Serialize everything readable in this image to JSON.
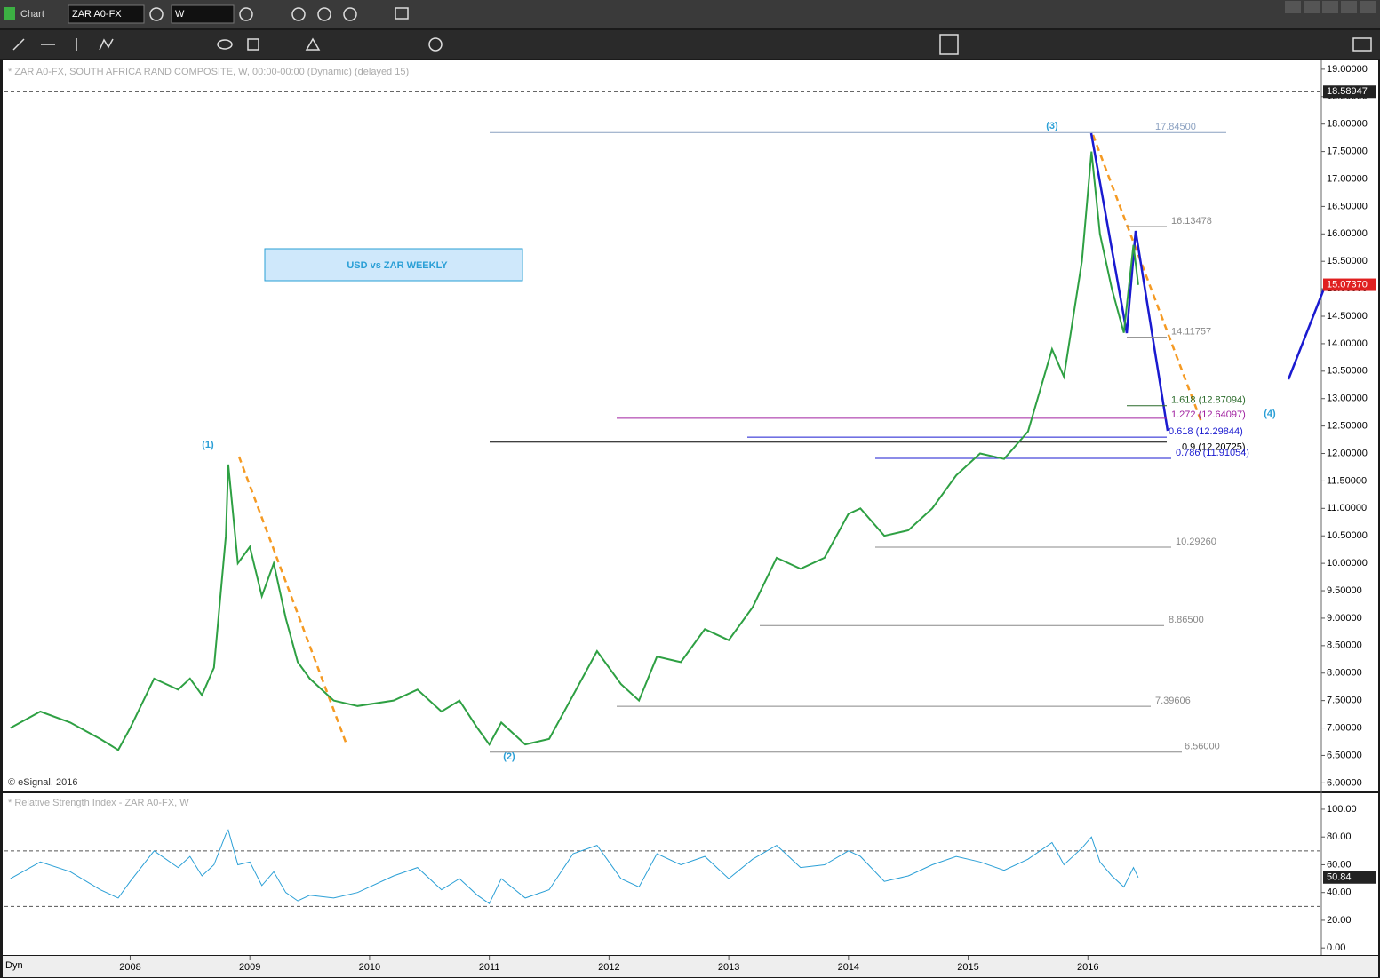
{
  "app_label": "Chart",
  "symbol": "ZAR A0-FX",
  "interval": "W",
  "footer_label": "Dyn",
  "chart_data": [
    {
      "type": "line",
      "title": "* ZAR A0-FX, SOUTH AFRICA RAND COMPOSITE, W, 00:00-00:00 (Dynamic) (delayed 15)",
      "annotation": "USD vs ZAR WEEKLY",
      "credit": "© eSignal, 2016",
      "wave_labels": [
        "(1)",
        "(2)",
        "(3)",
        "(4)"
      ],
      "x": [
        2007.0,
        2007.25,
        2007.5,
        2007.75,
        2007.9,
        2008.0,
        2008.2,
        2008.4,
        2008.5,
        2008.6,
        2008.7,
        2008.8,
        2008.82,
        2008.9,
        2009.0,
        2009.1,
        2009.2,
        2009.3,
        2009.4,
        2009.5,
        2009.7,
        2009.9,
        2010.2,
        2010.4,
        2010.6,
        2010.75,
        2010.9,
        2011.0,
        2011.1,
        2011.3,
        2011.5,
        2011.7,
        2011.9,
        2012.1,
        2012.25,
        2012.4,
        2012.6,
        2012.8,
        2013.0,
        2013.2,
        2013.4,
        2013.6,
        2013.8,
        2014.0,
        2014.1,
        2014.3,
        2014.5,
        2014.7,
        2014.9,
        2015.1,
        2015.3,
        2015.5,
        2015.7,
        2015.8,
        2015.95,
        2016.03,
        2016.1,
        2016.2,
        2016.3,
        2016.38,
        2016.42
      ],
      "series": [
        {
          "name": "ZAR A0-FX",
          "color": "#2ea043",
          "values": [
            7.0,
            7.3,
            7.1,
            6.8,
            6.6,
            7.0,
            7.9,
            7.7,
            7.9,
            7.6,
            8.1,
            10.5,
            11.8,
            10.0,
            10.3,
            9.4,
            10.0,
            9.0,
            8.2,
            7.9,
            7.5,
            7.4,
            7.5,
            7.7,
            7.3,
            7.5,
            7.0,
            6.7,
            7.1,
            6.7,
            6.8,
            7.6,
            8.4,
            7.8,
            7.5,
            8.3,
            8.2,
            8.8,
            8.6,
            9.2,
            10.1,
            9.9,
            10.1,
            10.9,
            11.0,
            10.5,
            10.6,
            11.0,
            11.6,
            12.0,
            11.9,
            12.4,
            13.9,
            13.4,
            15.5,
            17.5,
            16.0,
            15.0,
            14.2,
            15.8,
            15.07
          ]
        }
      ],
      "xlim": [
        2006.95,
        2017.95
      ],
      "xticks": [
        2008,
        2009,
        2010,
        2011,
        2012,
        2013,
        2014,
        2015,
        2016
      ],
      "ylim": [
        5.86,
        19.16
      ],
      "yticks": [
        {
          "value": 6,
          "label": "6.00000"
        },
        {
          "value": 6.5,
          "label": "6.50000"
        },
        {
          "value": 7,
          "label": "7.00000"
        },
        {
          "value": 7.5,
          "label": "7.50000"
        },
        {
          "value": 8,
          "label": "8.00000"
        },
        {
          "value": 8.5,
          "label": "8.50000"
        },
        {
          "value": 9,
          "label": "9.00000"
        },
        {
          "value": 9.5,
          "label": "9.50000"
        },
        {
          "value": 10,
          "label": "10.00000"
        },
        {
          "value": 10.5,
          "label": "10.50000"
        },
        {
          "value": 11,
          "label": "11.00000"
        },
        {
          "value": 11.5,
          "label": "11.50000"
        },
        {
          "value": 12,
          "label": "12.00000"
        },
        {
          "value": 12.5,
          "label": "12.50000"
        },
        {
          "value": 13,
          "label": "13.00000"
        },
        {
          "value": 13.5,
          "label": "13.50000"
        },
        {
          "value": 14,
          "label": "14.00000"
        },
        {
          "value": 14.5,
          "label": "14.50000"
        },
        {
          "value": 15,
          "label": "15.00000"
        },
        {
          "value": 15.5,
          "label": "15.50000"
        },
        {
          "value": 16,
          "label": "16.00000"
        },
        {
          "value": 16.5,
          "label": "16.50000"
        },
        {
          "value": 17,
          "label": "17.00000"
        },
        {
          "value": 17.5,
          "label": "17.50000"
        },
        {
          "value": 18,
          "label": "18.00000"
        },
        {
          "value": 18.5,
          "label": "18.50000"
        },
        {
          "value": 19,
          "label": "19.00000"
        }
      ],
      "markers": [
        {
          "value": 18.58947,
          "label": "18.58947",
          "color": "#222222"
        },
        {
          "value": 15.0737,
          "label": "15.07370",
          "color": "#e02020"
        }
      ],
      "levels": [
        {
          "value": 17.845,
          "label": "17.84500",
          "color": "#8aa0c0"
        },
        {
          "value": 16.13478,
          "label": "16.13478",
          "color": "#888888"
        },
        {
          "value": 14.11757,
          "label": "14.11757",
          "color": "#888888"
        },
        {
          "value": 12.87094,
          "label": "1.618 (12.87094)",
          "color": "#2a6a2a"
        },
        {
          "value": 12.64097,
          "label": "1.272 (12.64097)",
          "color": "#a020a0"
        },
        {
          "value": 12.29844,
          "label": "0.618 (12.29844)",
          "color": "#1a1ad0"
        },
        {
          "value": 12.20725,
          "label": "0.9 (12.20725)",
          "color": "#000000"
        },
        {
          "value": 11.91054,
          "label": "0.786 (11.91054)",
          "color": "#1a1ad0"
        },
        {
          "value": 10.2926,
          "label": "10.29260",
          "color": "#888888"
        },
        {
          "value": 8.865,
          "label": "8.86500",
          "color": "#888888"
        },
        {
          "value": 7.39606,
          "label": "7.39606",
          "color": "#888888"
        },
        {
          "value": 6.56,
          "label": "6.56000",
          "color": "#888888"
        }
      ]
    },
    {
      "type": "line",
      "title": "* Relative Strength Index - ZAR A0-FX, W",
      "series": [
        {
          "name": "RSI",
          "color": "#2a9fd6",
          "values": [
            50,
            62,
            55,
            42,
            36,
            48,
            70,
            58,
            66,
            52,
            60,
            82,
            85,
            60,
            62,
            45,
            55,
            40,
            34,
            38,
            36,
            40,
            52,
            58,
            42,
            50,
            38,
            32,
            50,
            36,
            42,
            68,
            74,
            50,
            44,
            68,
            60,
            66,
            50,
            64,
            74,
            58,
            60,
            70,
            66,
            48,
            52,
            60,
            66,
            62,
            56,
            64,
            76,
            60,
            72,
            80,
            62,
            52,
            44,
            58,
            50.84
          ]
        }
      ],
      "ylim": [
        -5,
        111.5
      ],
      "yticks": [
        {
          "value": 0,
          "label": "0.00"
        },
        {
          "value": 20,
          "label": "20.00"
        },
        {
          "value": 40,
          "label": "40.00"
        },
        {
          "value": 60,
          "label": "60.00"
        },
        {
          "value": 80,
          "label": "80.00"
        },
        {
          "value": 100,
          "label": "100.00"
        }
      ],
      "bands": [
        70,
        30
      ],
      "markers": [
        {
          "value": 50.84,
          "label": "50.84",
          "color": "#222222"
        }
      ]
    }
  ]
}
